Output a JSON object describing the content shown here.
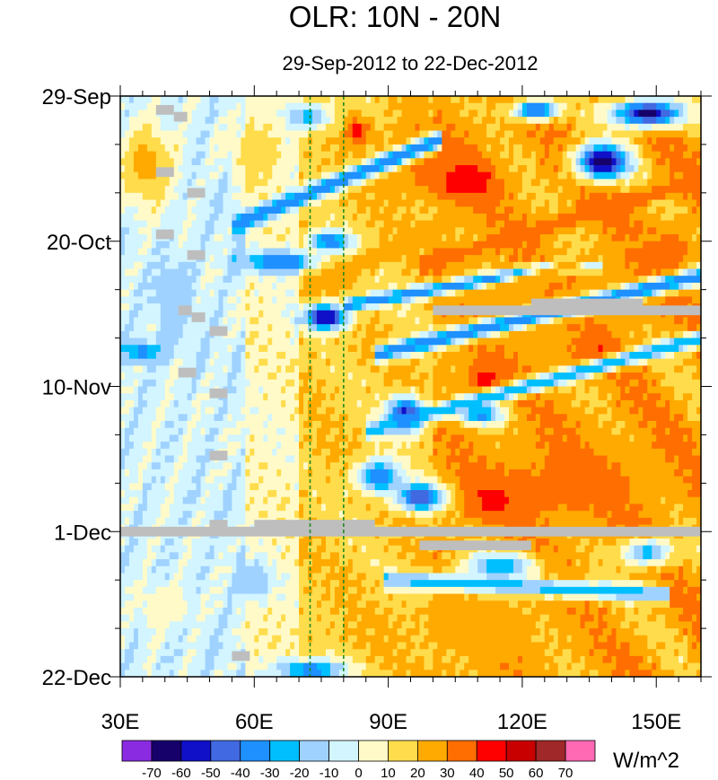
{
  "chart_data": {
    "type": "heatmap",
    "title": "OLR: 10N - 20N",
    "subtitle": "29-Sep-2012 to 22-Dec-2012",
    "x_range_deg": [
      30,
      160
    ],
    "x_ticks": [
      {
        "value": 30,
        "label": "30E"
      },
      {
        "value": 60,
        "label": "60E"
      },
      {
        "value": 90,
        "label": "90E"
      },
      {
        "value": 120,
        "label": "120E"
      },
      {
        "value": 150,
        "label": "150E"
      }
    ],
    "time_range_days": [
      0,
      84
    ],
    "y_ticks": [
      {
        "day": 0,
        "label": "29-Sep"
      },
      {
        "day": 21,
        "label": "20-Oct"
      },
      {
        "day": 42,
        "label": "10-Nov"
      },
      {
        "day": 63,
        "label": "1-Dec"
      },
      {
        "day": 84,
        "label": "22-Dec"
      }
    ],
    "reference_lines_deg": [
      72.5,
      80
    ],
    "colorbar": {
      "units": "W/m^2",
      "levels": [
        -70,
        -60,
        -50,
        -40,
        -30,
        -20,
        -10,
        0,
        10,
        20,
        30,
        40,
        50,
        60,
        70
      ],
      "colors": [
        "#8a2be2",
        "#16006a",
        "#1010c8",
        "#4169e1",
        "#1e90ff",
        "#00bfff",
        "#a0d2ff",
        "#d2f5ff",
        "#fffac8",
        "#ffdc4b",
        "#ffaa00",
        "#ff6e00",
        "#ff0000",
        "#c80000",
        "#a02828",
        "#ff69b4"
      ]
    },
    "features": [
      {
        "type": "blob",
        "lon": 138,
        "day": 9.5,
        "rx_deg": 6,
        "ry_days": 2.5,
        "value": -70
      },
      {
        "type": "blob",
        "lon": 148,
        "day": 2.5,
        "rx_deg": 8,
        "ry_days": 2,
        "value": -65
      },
      {
        "type": "blob",
        "lon": 123,
        "day": 2,
        "rx_deg": 5,
        "ry_days": 1.5,
        "value": -45
      },
      {
        "type": "blob",
        "lon": 76,
        "day": 32,
        "rx_deg": 5,
        "ry_days": 1.8,
        "value": -65
      },
      {
        "type": "blob",
        "lon": 66,
        "day": 24,
        "rx_deg": 8,
        "ry_days": 1.5,
        "value": -45
      },
      {
        "type": "blob",
        "lon": 77,
        "day": 21,
        "rx_deg": 5,
        "ry_days": 1.5,
        "value": -40
      },
      {
        "type": "blob",
        "lon": 94,
        "day": 46,
        "rx_deg": 4,
        "ry_days": 2.5,
        "value": -60
      },
      {
        "type": "blob",
        "lon": 111,
        "day": 46,
        "rx_deg": 5,
        "ry_days": 1.5,
        "value": -45
      },
      {
        "type": "blob",
        "lon": 98,
        "day": 58,
        "rx_deg": 6,
        "ry_days": 2,
        "value": -60
      },
      {
        "type": "blob",
        "lon": 88,
        "day": 55,
        "rx_deg": 5,
        "ry_days": 2.5,
        "value": -40
      },
      {
        "type": "blob",
        "lon": 115,
        "day": 68,
        "rx_deg": 8,
        "ry_days": 2,
        "value": -40
      },
      {
        "type": "blob",
        "lon": 35,
        "day": 37,
        "rx_deg": 4,
        "ry_days": 1.5,
        "value": -35
      },
      {
        "type": "blob",
        "lon": 73,
        "day": 83,
        "rx_deg": 8,
        "ry_days": 1.5,
        "value": -40
      },
      {
        "type": "blob",
        "lon": 72,
        "day": 3,
        "rx_deg": 5,
        "ry_days": 2,
        "value": -25
      },
      {
        "type": "blob",
        "lon": 83,
        "day": 5,
        "rx_deg": 3,
        "ry_days": 2,
        "value": 45
      },
      {
        "type": "blob",
        "lon": 106,
        "day": 12,
        "rx_deg": 8,
        "ry_days": 3,
        "value": 50
      },
      {
        "type": "blob",
        "lon": 98,
        "day": 9,
        "rx_deg": 10,
        "ry_days": 5,
        "value": 35
      },
      {
        "type": "blob",
        "lon": 132,
        "day": 30,
        "rx_deg": 18,
        "ry_days": 6,
        "value": 30
      },
      {
        "type": "blob",
        "lon": 118,
        "day": 38,
        "rx_deg": 14,
        "ry_days": 5,
        "value": 30
      },
      {
        "type": "blob",
        "lon": 116,
        "day": 58,
        "rx_deg": 10,
        "ry_days": 3,
        "value": 50
      },
      {
        "type": "blob",
        "lon": 133,
        "day": 56,
        "rx_deg": 22,
        "ry_days": 7,
        "value": 32
      },
      {
        "type": "blob",
        "lon": 112,
        "day": 41,
        "rx_deg": 4,
        "ry_days": 2,
        "value": 45
      },
      {
        "type": "blob",
        "lon": 137,
        "day": 38,
        "rx_deg": 5,
        "ry_days": 2,
        "value": 45
      },
      {
        "type": "blob",
        "lon": 108,
        "day": 76,
        "rx_deg": 22,
        "ry_days": 6,
        "value": 22
      },
      {
        "type": "blob",
        "lon": 36,
        "day": 10,
        "rx_deg": 6,
        "ry_days": 6,
        "value": 25
      },
      {
        "type": "blob",
        "lon": 60,
        "day": 8,
        "rx_deg": 5,
        "ry_days": 4,
        "value": 20
      },
      {
        "type": "blob",
        "lon": 42,
        "day": 30,
        "rx_deg": 4,
        "ry_days": 6,
        "value": -20
      },
      {
        "type": "blob",
        "lon": 60,
        "day": 70,
        "rx_deg": 4,
        "ry_days": 3,
        "value": -20
      },
      {
        "type": "blob",
        "lon": 148,
        "day": 66,
        "rx_deg": 6,
        "ry_days": 2,
        "value": -25
      },
      {
        "type": "blob",
        "lon": 152,
        "day": 22,
        "rx_deg": 6,
        "ry_days": 3,
        "value": 40
      },
      {
        "type": "blob",
        "lon": 40,
        "day": 74,
        "rx_deg": 6,
        "ry_days": 3,
        "value": 10
      },
      {
        "type": "band",
        "lon_at_day": [
          [
            58,
            18
          ],
          [
            99,
            7
          ]
        ],
        "width_days": 1.3,
        "value": -40
      },
      {
        "type": "band",
        "lon_at_day": [
          [
            90,
            37
          ],
          [
            160,
            26
          ]
        ],
        "width_days": 1.2,
        "value": -40
      },
      {
        "type": "band",
        "lon_at_day": [
          [
            88,
            48
          ],
          [
            160,
            35
          ]
        ],
        "width_days": 1.1,
        "value": -30
      },
      {
        "type": "band",
        "lon_at_day": [
          [
            83,
            30
          ],
          [
            135,
            24
          ]
        ],
        "width_days": 1,
        "value": -35
      },
      {
        "type": "band",
        "lon_at_day": [
          [
            74,
            27
          ],
          [
            112,
            16
          ]
        ],
        "width_days": 1.4,
        "value": 30
      },
      {
        "type": "band",
        "lon_at_day": [
          [
            100,
            24
          ],
          [
            160,
            12
          ]
        ],
        "width_days": 1.3,
        "value": 35
      },
      {
        "type": "band",
        "lon_at_day": [
          [
            105,
            30
          ],
          [
            160,
            18
          ]
        ],
        "width_days": 1,
        "value": 28
      },
      {
        "type": "band",
        "lon_at_day": [
          [
            92,
            70
          ],
          [
            150,
            72
          ]
        ],
        "width_days": 1.2,
        "value": -25
      }
    ],
    "missing_data_strips": [
      {
        "lon_start": 30,
        "lon_end": 160,
        "day": 63
      },
      {
        "lon_start": 100,
        "lon_end": 160,
        "day": 31
      },
      {
        "lon_start": 122,
        "lon_end": 147,
        "day": 30
      },
      {
        "lon_start": 97,
        "lon_end": 122,
        "day": 65
      },
      {
        "lon_start": 60,
        "lon_end": 87,
        "day": 62
      },
      {
        "lon_start": 50,
        "lon_end": 54,
        "day": 62
      },
      {
        "lon_start": 38,
        "lon_end": 42,
        "day": 2
      },
      {
        "lon_start": 42,
        "lon_end": 45,
        "day": 3
      },
      {
        "lon_start": 38,
        "lon_end": 42,
        "day": 11
      },
      {
        "lon_start": 45,
        "lon_end": 49,
        "day": 14
      },
      {
        "lon_start": 38,
        "lon_end": 42,
        "day": 20
      },
      {
        "lon_start": 45,
        "lon_end": 49,
        "day": 23
      },
      {
        "lon_start": 43,
        "lon_end": 46,
        "day": 31
      },
      {
        "lon_start": 46,
        "lon_end": 49,
        "day": 32
      },
      {
        "lon_start": 50,
        "lon_end": 54,
        "day": 34
      },
      {
        "lon_start": 43,
        "lon_end": 47,
        "day": 40
      },
      {
        "lon_start": 50,
        "lon_end": 54,
        "day": 43
      },
      {
        "lon_start": 50,
        "lon_end": 54,
        "day": 52
      },
      {
        "lon_start": 55,
        "lon_end": 59,
        "day": 81
      }
    ]
  }
}
